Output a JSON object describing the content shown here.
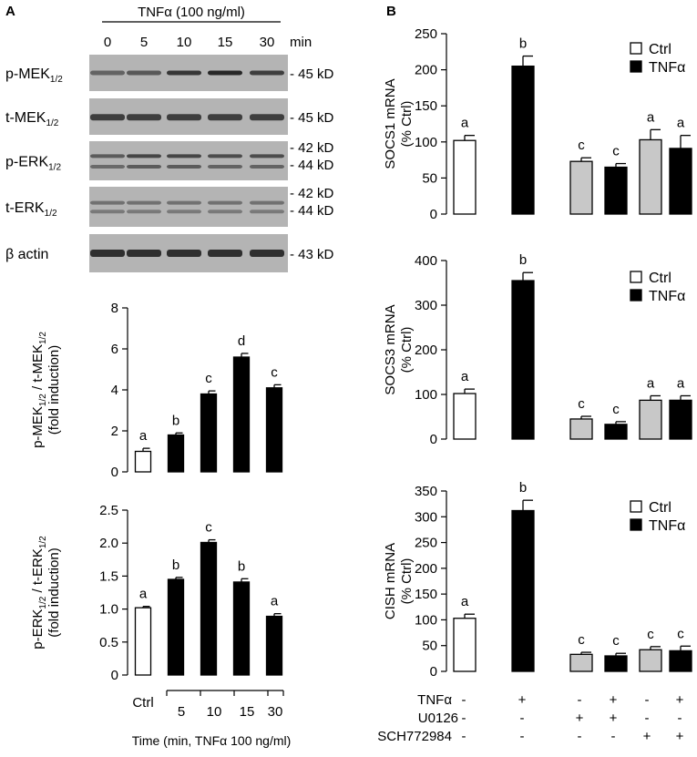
{
  "colors": {
    "ctrl_fill": "#ffffff",
    "tnf_fill": "#000000",
    "inhib_fill": "#c8c8c8",
    "axis": "#000000",
    "blot_bg": "#b4b4b4"
  },
  "panelA": {
    "label": "A",
    "treatment_label": "TNFα (100 ng/ml)",
    "time_points": [
      "0",
      "5",
      "10",
      "15",
      "30"
    ],
    "time_unit": "min",
    "blots": [
      {
        "name_main": "p-MEK",
        "name_sub": "1/2",
        "markers": [
          "- 45 kD"
        ]
      },
      {
        "name_main": "t-MEK",
        "name_sub": "1/2",
        "markers": [
          "- 45 kD"
        ]
      },
      {
        "name_main": "p-ERK",
        "name_sub": "1/2",
        "markers": [
          "- 42 kD",
          "- 44 kD"
        ]
      },
      {
        "name_main": "t-ERK",
        "name_sub": "1/2",
        "markers": [
          "- 42 kD",
          "- 44 kD"
        ]
      },
      {
        "name_main": "β actin",
        "name_sub": "",
        "markers": [
          "- 43 kD"
        ]
      }
    ],
    "x_categories": [
      "Ctrl",
      "5",
      "10",
      "15",
      "30"
    ],
    "x_title": "Time (min, TNFα 100 ng/ml)"
  },
  "panelB": {
    "label": "B",
    "legend": [
      "Ctrl",
      "TNFα"
    ],
    "treatment_rows": [
      {
        "label": "TNFα",
        "signs": [
          "-",
          "+",
          "-",
          "+",
          "-",
          "+"
        ]
      },
      {
        "label": "U0126",
        "signs": [
          "-",
          "-",
          "+",
          "+",
          "-",
          "-"
        ]
      },
      {
        "label": "SCH772984",
        "signs": [
          "-",
          "-",
          "-",
          "-",
          "+",
          "+"
        ]
      }
    ]
  },
  "chart_data": [
    {
      "id": "mek",
      "type": "bar",
      "ylabel_main": "p-MEK",
      "ylabel_mid": " / t-MEK",
      "ylabel_sub": "1/2",
      "ylabel2": "(fold induction)",
      "categories": [
        "Ctrl",
        "5",
        "10",
        "15",
        "30"
      ],
      "values": [
        1.0,
        1.8,
        3.8,
        5.6,
        4.1
      ],
      "errors": [
        0.15,
        0.1,
        0.15,
        0.18,
        0.15
      ],
      "letters": [
        "a",
        "b",
        "c",
        "d",
        "c"
      ],
      "fills": [
        "ctrl",
        "tnf",
        "tnf",
        "tnf",
        "tnf"
      ],
      "ylim": [
        0,
        8
      ],
      "yticks": [
        "0",
        "2",
        "4",
        "6",
        "8"
      ]
    },
    {
      "id": "erk",
      "type": "bar",
      "ylabel_main": "p-ERK",
      "ylabel_mid": " / t-ERK",
      "ylabel_sub": "1/2",
      "ylabel2": "(fold induction)",
      "categories": [
        "Ctrl",
        "5",
        "10",
        "15",
        "30"
      ],
      "values": [
        1.02,
        1.45,
        2.01,
        1.41,
        0.89
      ],
      "errors": [
        0.02,
        0.03,
        0.04,
        0.05,
        0.04
      ],
      "letters": [
        "a",
        "b",
        "c",
        "b",
        "a"
      ],
      "fills": [
        "ctrl",
        "tnf",
        "tnf",
        "tnf",
        "tnf"
      ],
      "ylim": [
        0,
        2.5
      ],
      "yticks": [
        "0",
        "0.5",
        "1.0",
        "1.5",
        "2.0",
        "2.5"
      ]
    },
    {
      "id": "socs1",
      "type": "bar",
      "ylabel_main": "SOCS1 mRNA",
      "ylabel2": "(% Ctrl)",
      "values": [
        102,
        205,
        73,
        65,
        103,
        91
      ],
      "errors": [
        7,
        14,
        5,
        5,
        14,
        18
      ],
      "letters": [
        "a",
        "b",
        "c",
        "c",
        "a",
        "a"
      ],
      "fills": [
        "ctrl",
        "tnf",
        "inhib",
        "tnf",
        "inhib",
        "tnf"
      ],
      "ylim": [
        0,
        250
      ],
      "yticks": [
        "0",
        "50",
        "100",
        "150",
        "200",
        "250"
      ]
    },
    {
      "id": "socs3",
      "type": "bar",
      "ylabel_main": "SOCS3 mRNA",
      "ylabel2": "(% Ctrl)",
      "values": [
        102,
        355,
        45,
        33,
        87,
        87
      ],
      "errors": [
        10,
        18,
        6,
        6,
        10,
        10
      ],
      "letters": [
        "a",
        "b",
        "c",
        "c",
        "a",
        "a"
      ],
      "fills": [
        "ctrl",
        "tnf",
        "inhib",
        "tnf",
        "inhib",
        "tnf"
      ],
      "ylim": [
        0,
        400
      ],
      "yticks": [
        "0",
        "100",
        "200",
        "300",
        "400"
      ]
    },
    {
      "id": "cish",
      "type": "bar",
      "ylabel_main": "CISH mRNA",
      "ylabel2": "(% Ctrl)",
      "values": [
        103,
        312,
        33,
        30,
        42,
        40
      ],
      "errors": [
        8,
        20,
        4,
        5,
        6,
        9
      ],
      "letters": [
        "a",
        "b",
        "c",
        "c",
        "c",
        "c"
      ],
      "fills": [
        "ctrl",
        "tnf",
        "inhib",
        "tnf",
        "inhib",
        "tnf"
      ],
      "ylim": [
        0,
        350
      ],
      "yticks": [
        "0",
        "50",
        "100",
        "150",
        "200",
        "250",
        "300",
        "350"
      ]
    }
  ]
}
